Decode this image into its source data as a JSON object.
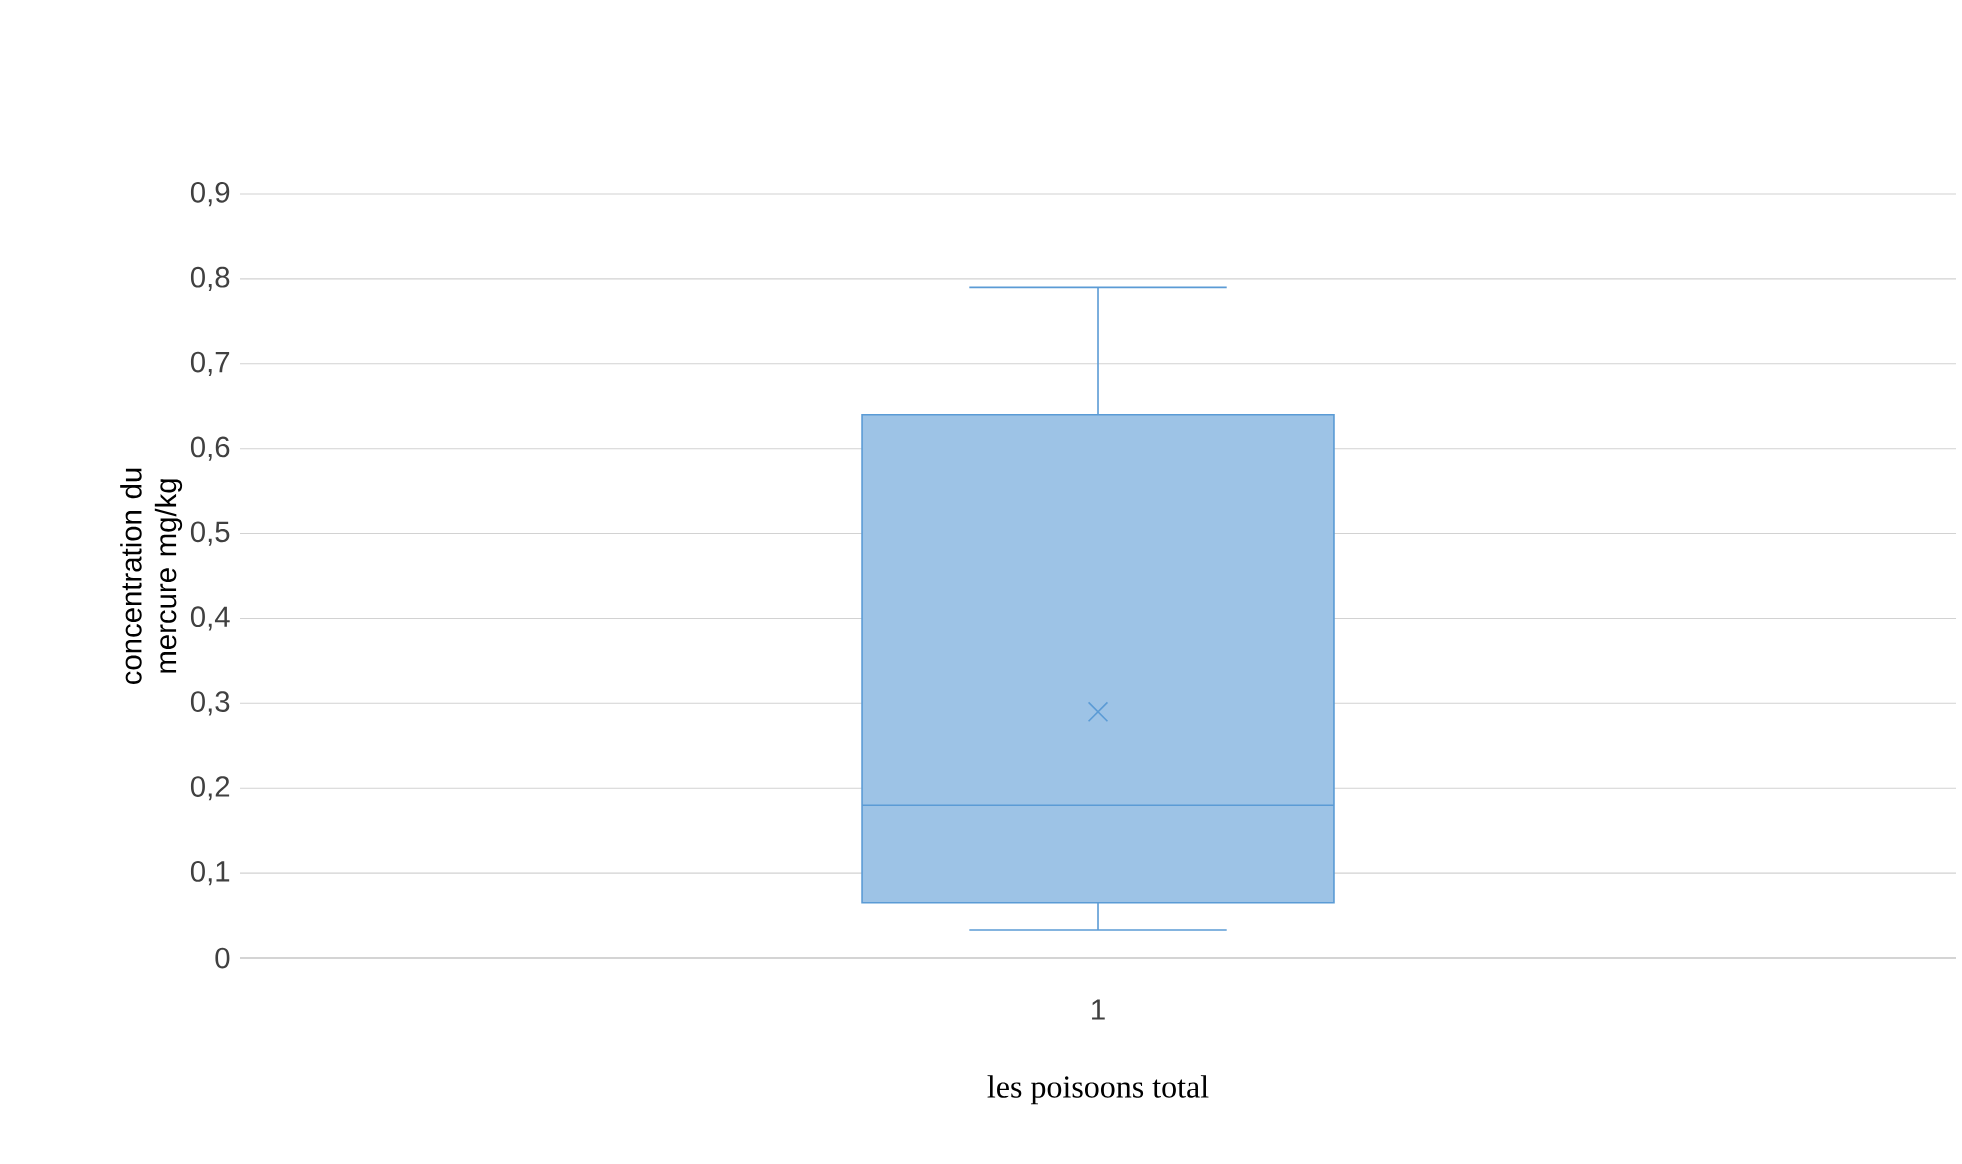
{
  "chart_data": {
    "type": "box",
    "categories": [
      "1"
    ],
    "boxes": [
      {
        "low": 0.033,
        "q1": 0.065,
        "median": 0.18,
        "q3": 0.64,
        "high": 0.79,
        "mean": 0.29
      }
    ],
    "color": "#5b9bd5",
    "xlabel": "les poisoons total",
    "ylabel": "concentration du mercure mg/kg",
    "ylim": [
      0,
      0.9
    ],
    "yticks": [
      {
        "value": 0,
        "label": "0"
      },
      {
        "value": 0.1,
        "label": "0,1"
      },
      {
        "value": 0.2,
        "label": "0,2"
      },
      {
        "value": 0.3,
        "label": "0,3"
      },
      {
        "value": 0.4,
        "label": "0,4"
      },
      {
        "value": 0.5,
        "label": "0,5"
      },
      {
        "value": 0.6,
        "label": "0,6"
      },
      {
        "value": 0.7,
        "label": "0,7"
      },
      {
        "value": 0.8,
        "label": "0,8"
      },
      {
        "value": 0.9,
        "label": "0,9"
      }
    ],
    "grid": "y"
  }
}
